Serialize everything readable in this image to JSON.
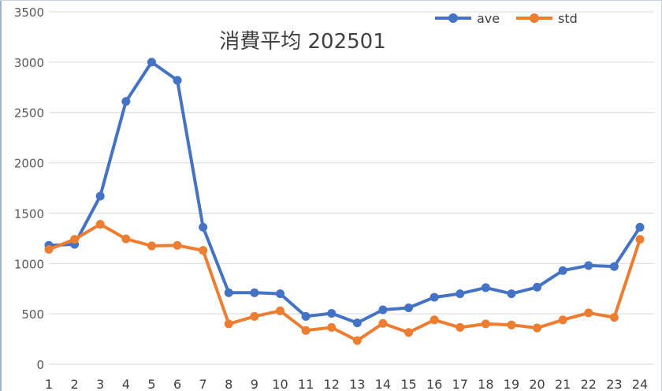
{
  "chart_data": {
    "type": "line",
    "title": "消費平均 202501",
    "x": [
      "1",
      "2",
      "3",
      "4",
      "5",
      "6",
      "7",
      "8",
      "9",
      "10",
      "11",
      "12",
      "13",
      "14",
      "15",
      "16",
      "17",
      "18",
      "19",
      "20",
      "21",
      "22",
      "23",
      "24"
    ],
    "series": [
      {
        "name": "ave",
        "color": "#4472c4",
        "values": [
          1180,
          1190,
          1670,
          2610,
          3000,
          2820,
          1360,
          710,
          710,
          700,
          475,
          505,
          410,
          540,
          560,
          665,
          700,
          760,
          700,
          765,
          930,
          980,
          970,
          1360
        ]
      },
      {
        "name": "std",
        "color": "#ed7d31",
        "values": [
          1140,
          1240,
          1390,
          1245,
          1175,
          1180,
          1130,
          400,
          475,
          530,
          335,
          365,
          235,
          405,
          315,
          440,
          365,
          400,
          390,
          360,
          440,
          510,
          465,
          1240
        ]
      }
    ],
    "ylim": [
      0,
      3500
    ],
    "yticks": [
      0,
      500,
      1000,
      1500,
      2000,
      2500,
      3000,
      3500
    ],
    "grid": true,
    "legend_position": "top-right"
  }
}
